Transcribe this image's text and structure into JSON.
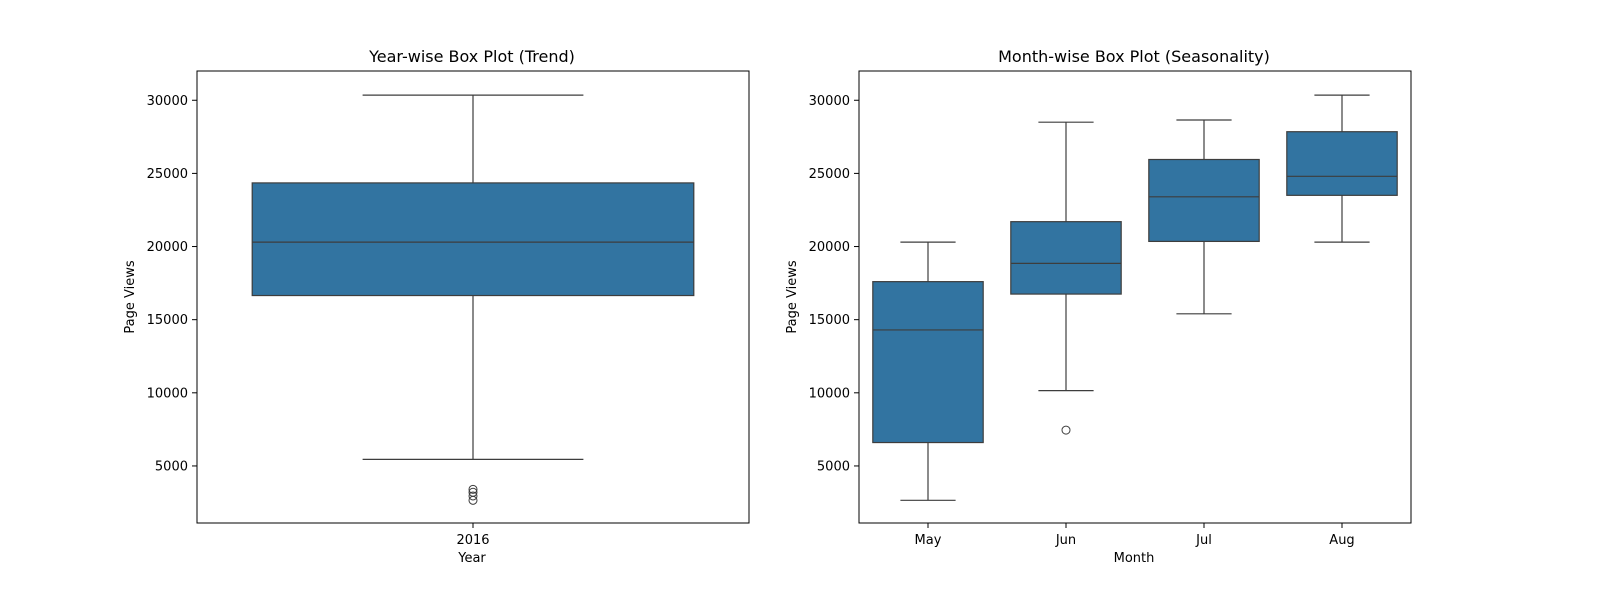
{
  "colors": {
    "box_fill": "#3274a1",
    "line": "#3d3d3d",
    "frame": "#000000",
    "background": "#ffffff"
  },
  "chart_data": [
    {
      "type": "box",
      "title": "Year-wise Box Plot (Trend)",
      "xlabel": "Year",
      "ylabel": "Page Views",
      "ylim": [
        1100,
        32000
      ],
      "yticks": [
        5000,
        10000,
        15000,
        20000,
        25000,
        30000
      ],
      "categories": [
        "2016"
      ],
      "boxes": [
        {
          "category": "2016",
          "whisker_low": 5450,
          "q1": 16650,
          "median": 20300,
          "q3": 24350,
          "whisker_high": 30350,
          "outliers": [
            3400,
            3200,
            2950,
            2650
          ]
        }
      ]
    },
    {
      "type": "box",
      "title": "Month-wise Box Plot (Seasonality)",
      "xlabel": "Month",
      "ylabel": "Page Views",
      "ylim": [
        1100,
        32000
      ],
      "yticks": [
        5000,
        10000,
        15000,
        20000,
        25000,
        30000
      ],
      "categories": [
        "May",
        "Jun",
        "Jul",
        "Aug"
      ],
      "boxes": [
        {
          "category": "May",
          "whisker_low": 2650,
          "q1": 6600,
          "median": 14300,
          "q3": 17600,
          "whisker_high": 20300,
          "outliers": []
        },
        {
          "category": "Jun",
          "whisker_low": 10150,
          "q1": 16750,
          "median": 18850,
          "q3": 21700,
          "whisker_high": 28500,
          "outliers": [
            7450
          ]
        },
        {
          "category": "Jul",
          "whisker_low": 15400,
          "q1": 20350,
          "median": 23400,
          "q3": 25950,
          "whisker_high": 28650,
          "outliers": []
        },
        {
          "category": "Aug",
          "whisker_low": 20300,
          "q1": 23500,
          "median": 24800,
          "q3": 27850,
          "whisker_high": 30350,
          "outliers": []
        }
      ]
    }
  ]
}
